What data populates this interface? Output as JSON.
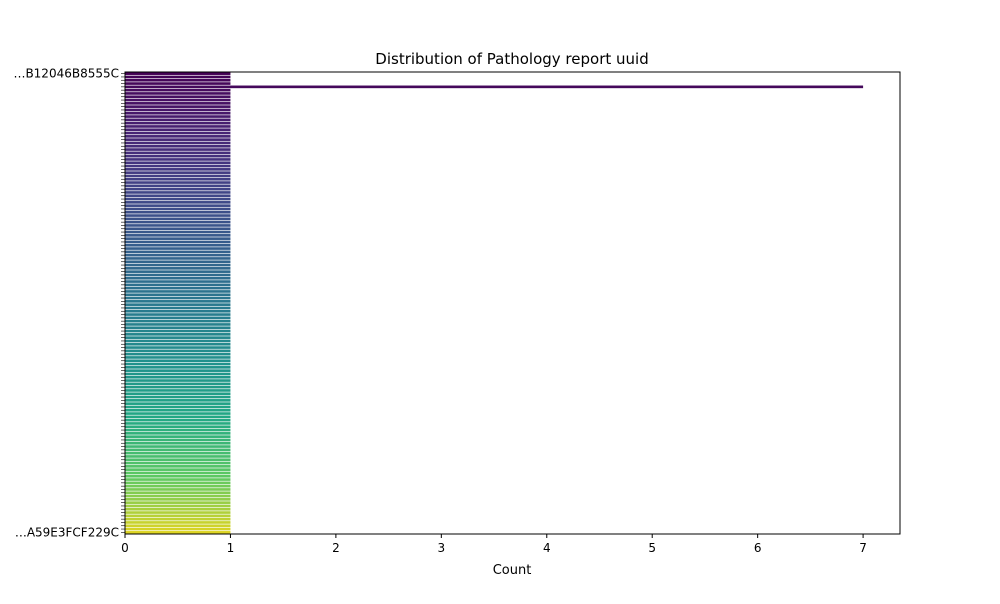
{
  "chart_data": {
    "type": "bar",
    "orientation": "horizontal",
    "title": "Distribution of Pathology report uuid",
    "xlabel": "Count",
    "ylabel": "",
    "xlim": [
      0,
      7.35
    ],
    "xticks": [
      0,
      1,
      2,
      3,
      4,
      5,
      6,
      7
    ],
    "colormap": "viridis",
    "category_count": 140,
    "values_note_unreadable_labels": true,
    "categories": [
      "…B12046B8555C",
      "",
      "",
      "",
      "",
      "",
      "",
      "",
      "",
      "",
      "",
      "",
      "",
      "",
      "",
      "",
      "",
      "",
      "",
      "",
      "",
      "",
      "",
      "",
      "",
      "",
      "",
      "",
      "",
      "",
      "",
      "",
      "",
      "",
      "",
      "",
      "",
      "",
      "",
      "",
      "",
      "",
      "",
      "",
      "",
      "",
      "",
      "",
      "",
      "",
      "",
      "",
      "",
      "",
      "",
      "",
      "",
      "",
      "",
      "",
      "",
      "",
      "",
      "",
      "",
      "",
      "",
      "",
      "",
      "",
      "",
      "",
      "",
      "",
      "",
      "",
      "",
      "",
      "",
      "",
      "",
      "",
      "",
      "",
      "",
      "",
      "",
      "",
      "",
      "",
      "",
      "",
      "",
      "",
      "",
      "",
      "",
      "",
      "",
      "",
      "",
      "",
      "",
      "",
      "",
      "",
      "",
      "",
      "",
      "",
      "",
      "",
      "",
      "",
      "",
      "",
      "",
      "",
      "",
      "",
      "",
      "",
      "",
      "",
      "",
      "",
      "",
      "",
      "",
      "",
      "",
      "",
      "",
      "",
      "",
      "",
      "",
      "",
      "",
      "…A59E3FCF229C"
    ],
    "values": [
      1,
      1,
      1,
      1,
      7,
      1,
      1,
      1,
      1,
      1,
      1,
      1,
      1,
      1,
      1,
      1,
      1,
      1,
      1,
      1,
      1,
      1,
      1,
      1,
      1,
      1,
      1,
      1,
      1,
      1,
      1,
      1,
      1,
      1,
      1,
      1,
      1,
      1,
      1,
      1,
      1,
      1,
      1,
      1,
      1,
      1,
      1,
      1,
      1,
      1,
      1,
      1,
      1,
      1,
      1,
      1,
      1,
      1,
      1,
      1,
      1,
      1,
      1,
      1,
      1,
      1,
      1,
      1,
      1,
      1,
      1,
      1,
      1,
      1,
      1,
      1,
      1,
      1,
      1,
      1,
      1,
      1,
      1,
      1,
      1,
      1,
      1,
      1,
      1,
      1,
      1,
      1,
      1,
      1,
      1,
      1,
      1,
      1,
      1,
      1,
      1,
      1,
      1,
      1,
      1,
      1,
      1,
      1,
      1,
      1,
      1,
      1,
      1,
      1,
      1,
      1,
      1,
      1,
      1,
      1,
      1,
      1,
      1,
      1,
      1,
      1,
      1,
      1,
      1,
      1,
      1,
      1,
      1,
      1,
      1,
      1,
      1,
      1,
      1,
      1
    ]
  }
}
